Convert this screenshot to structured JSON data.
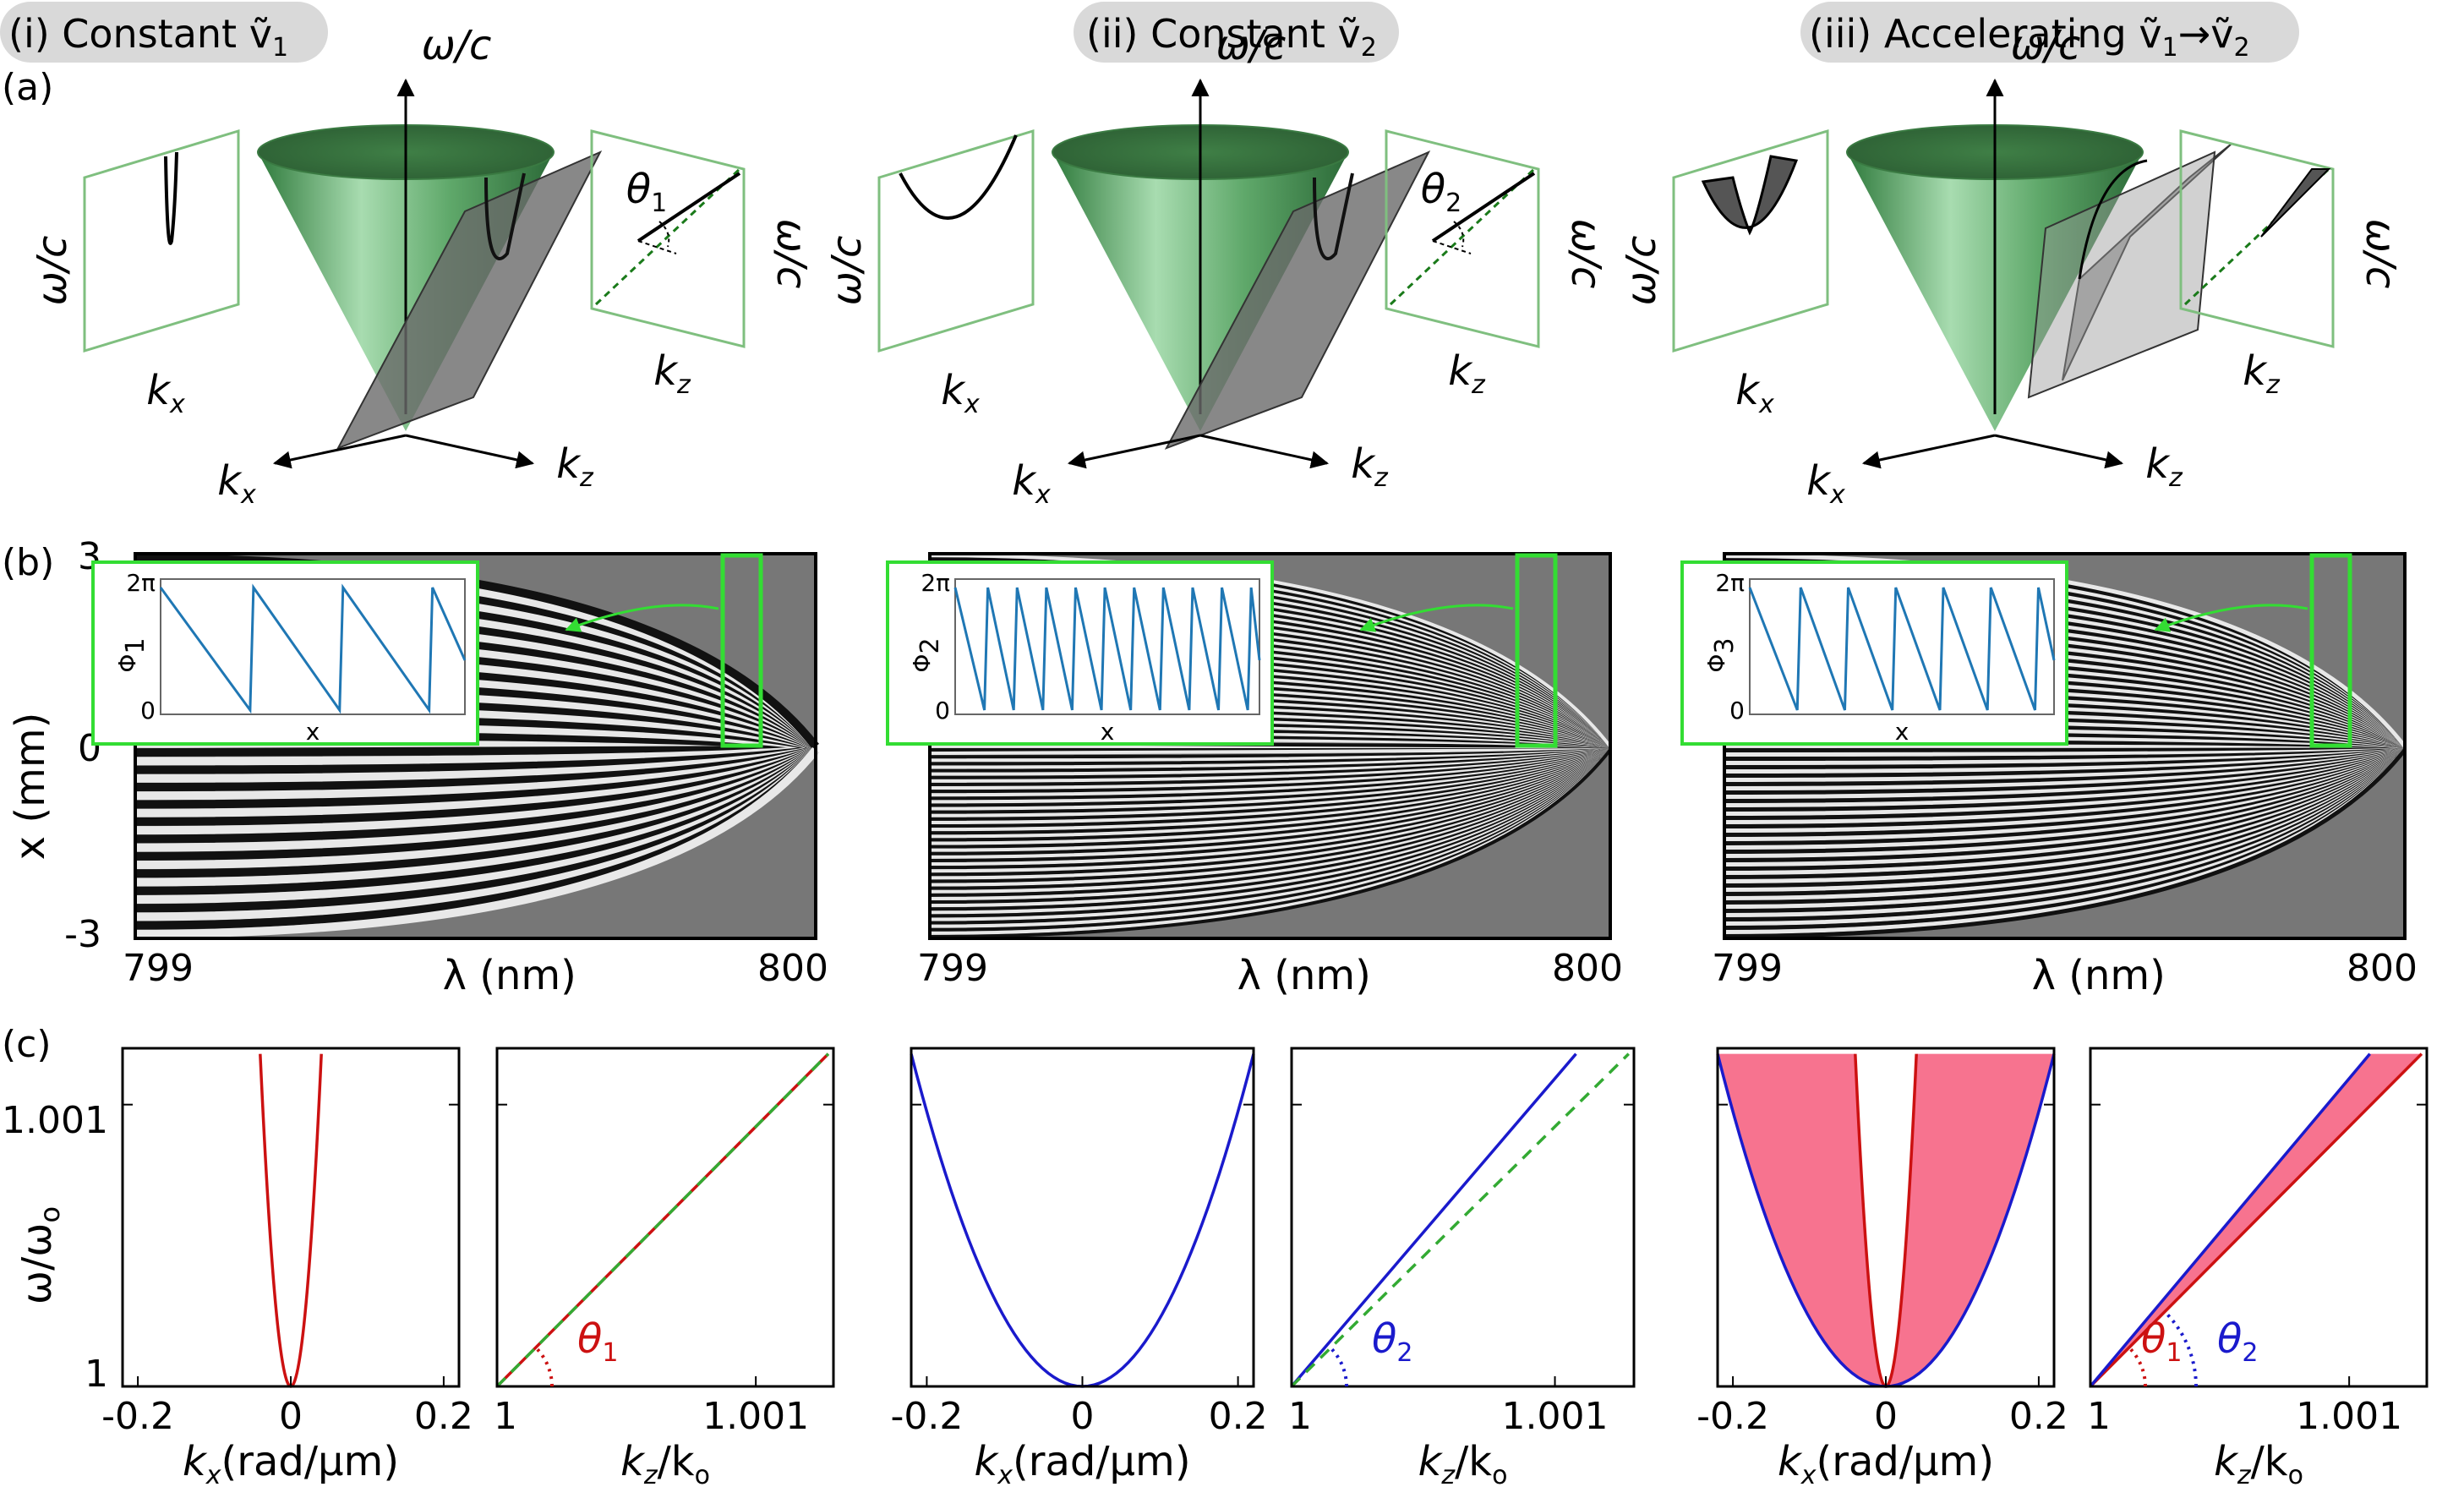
{
  "panel_labels": {
    "a": "(a)",
    "b": "(b)",
    "c": "(c)"
  },
  "columns": [
    {
      "pill": "(i) Constant ṽ",
      "sub": "1",
      "angle": "θ",
      "angle_sub": "1",
      "phase_sub": "1"
    },
    {
      "pill": "(ii) Constant ṽ",
      "sub": "2",
      "angle": "θ",
      "angle_sub": "2",
      "phase_sub": "2"
    },
    {
      "pill": "(iii) Accelerating ṽ",
      "sub": "1",
      "arrow": "→ṽ",
      "sub2": "2",
      "angle": "θ",
      "angle_sub": "",
      "phase_sub": "3"
    }
  ],
  "row_a": {
    "cone_axis": "ω/c",
    "kx": "k",
    "kx_sub": "x",
    "kz": "k",
    "kz_sub": "z",
    "side_ylabel": "ω/c",
    "side_xlabel_left": "k",
    "side_xlabel_right": "k",
    "colors": {
      "cone": "#5fa86a",
      "plane": "#7a7a7a",
      "frame": "#7fbf7f"
    }
  },
  "row_b": {
    "ylabel": "x (mm)",
    "yticks": [
      "3",
      "0",
      "-3"
    ],
    "xlabel": "λ (nm)",
    "xticks": [
      "799",
      "800"
    ],
    "inset": {
      "top": "2π",
      "bottom": "0",
      "ylabel": "Φ",
      "xlabel": "x"
    },
    "colors": {
      "trace": "#1f77b4",
      "highlight": "#33dd33"
    }
  },
  "row_c": {
    "ylabel": "ω/ω",
    "ylabel_sub": "o",
    "yticks": [
      "1.001",
      "1"
    ],
    "kx_ticks": [
      "-0.2",
      "0",
      "0.2"
    ],
    "kz_ticks": [
      "1",
      "1.001"
    ],
    "kx_label": "k",
    "kx_label_sub": "x",
    "kx_label_unit": "(rad/μm)",
    "kz_label": "k",
    "kz_label_sub": "z",
    "kz_label_den": "/k",
    "kz_label_den_sub": "o",
    "theta": "θ",
    "colors": {
      "red": "#cc1111",
      "blue": "#1a1acc",
      "fill": "#f7738f",
      "dash": "#33aa33"
    }
  },
  "chart_data": [
    {
      "type": "line",
      "title": "",
      "xlabel": "kx (rad/μm)",
      "ylabel": "ω/ωo",
      "xlim": [
        -0.22,
        0.22
      ],
      "ylim": [
        1.0,
        1.0012
      ],
      "series": [
        {
          "color": "#cc1111",
          "x": [
            -0.04,
            -0.03,
            -0.02,
            -0.01,
            0,
            0.01,
            0.02,
            0.03,
            0.04
          ],
          "y": [
            1.00118,
            1.00066,
            1.0003,
            1.00007,
            1.0,
            1.00007,
            1.0003,
            1.00066,
            1.00118
          ]
        }
      ]
    },
    {
      "type": "line",
      "title": "",
      "xlabel": "kz/ko",
      "ylabel": "",
      "xlim": [
        1.0,
        1.0013
      ],
      "ylim": [
        1.0,
        1.0012
      ],
      "series": [
        {
          "color": "#cc1111",
          "x": [
            1.0,
            1.00128
          ],
          "y": [
            1.0,
            1.00118
          ]
        },
        {
          "color": "#33aa33",
          "x": [
            1.0,
            1.00128
          ],
          "y": [
            1.0,
            1.00118
          ]
        }
      ]
    },
    {
      "type": "line",
      "title": "",
      "xlabel": "kx (rad/μm)",
      "ylabel": "",
      "xlim": [
        -0.22,
        0.22
      ],
      "ylim": [
        1.0,
        1.0012
      ],
      "series": [
        {
          "color": "#1a1acc",
          "x": [
            -0.22,
            -0.15,
            -0.1,
            -0.05,
            0,
            0.05,
            0.1,
            0.15,
            0.22
          ],
          "y": [
            1.00118,
            1.00055,
            1.00024,
            1.00006,
            1.0,
            1.00006,
            1.00024,
            1.00055,
            1.00118
          ]
        }
      ]
    },
    {
      "type": "line",
      "title": "",
      "xlabel": "kz/ko",
      "ylabel": "",
      "xlim": [
        1.0,
        1.0013
      ],
      "ylim": [
        1.0,
        1.0012
      ],
      "series": [
        {
          "color": "#1a1acc",
          "x": [
            1.0,
            1.00108
          ],
          "y": [
            1.0,
            1.00118
          ]
        },
        {
          "color": "#33aa33",
          "x": [
            1.0,
            1.00128
          ],
          "y": [
            1.0,
            1.00118
          ]
        }
      ]
    },
    {
      "type": "area",
      "title": "",
      "xlabel": "kx (rad/μm)",
      "ylabel": "",
      "xlim": [
        -0.22,
        0.22
      ],
      "ylim": [
        1.0,
        1.0012
      ],
      "series": [
        {
          "color": "#cc1111",
          "x": [
            -0.04,
            0,
            0.04
          ],
          "y": [
            1.00118,
            1.0,
            1.00118
          ]
        },
        {
          "color": "#1a1acc",
          "x": [
            -0.22,
            0,
            0.22
          ],
          "y": [
            1.00118,
            1.0,
            1.00118
          ]
        }
      ]
    },
    {
      "type": "area",
      "title": "",
      "xlabel": "kz/ko",
      "ylabel": "",
      "xlim": [
        1.0,
        1.0013
      ],
      "ylim": [
        1.0,
        1.0012
      ],
      "series": [
        {
          "color": "#cc1111",
          "x": [
            1.0,
            1.00128
          ],
          "y": [
            1.0,
            1.00118
          ]
        },
        {
          "color": "#1a1acc",
          "x": [
            1.0,
            1.00108
          ],
          "y": [
            1.0,
            1.00118
          ]
        }
      ]
    }
  ]
}
